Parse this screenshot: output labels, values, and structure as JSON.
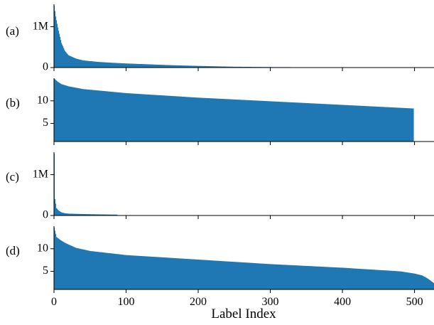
{
  "chart_data": [
    {
      "type": "bar",
      "panel_label": "(a)",
      "ytick_labels": [
        "1M",
        "0"
      ],
      "yticks": [
        1000000,
        0
      ],
      "ylim": [
        0,
        1550000
      ],
      "num_bars": 383,
      "profile_points": [
        [
          0,
          1520000
        ],
        [
          2,
          1250000
        ],
        [
          5,
          980000
        ],
        [
          10,
          600000
        ],
        [
          15,
          400000
        ],
        [
          20,
          300000
        ],
        [
          30,
          220000
        ],
        [
          40,
          175000
        ],
        [
          60,
          140000
        ],
        [
          80,
          118000
        ],
        [
          100,
          100000
        ],
        [
          130,
          80000
        ],
        [
          160,
          60000
        ],
        [
          200,
          40000
        ],
        [
          250,
          20000
        ],
        [
          300,
          12000
        ],
        [
          350,
          8000
        ],
        [
          383,
          6000
        ]
      ],
      "color": "#1f77b4"
    },
    {
      "type": "bar",
      "panel_label": "(b)",
      "ytick_labels": [
        "10",
        "5"
      ],
      "yticks": [
        10,
        5
      ],
      "ylim": [
        1,
        15
      ],
      "num_bars": 499,
      "profile_points": [
        [
          0,
          14.9
        ],
        [
          5,
          14.2
        ],
        [
          10,
          13.7
        ],
        [
          20,
          13.2
        ],
        [
          40,
          12.6
        ],
        [
          100,
          11.7
        ],
        [
          200,
          10.7
        ],
        [
          300,
          9.9
        ],
        [
          400,
          9.1
        ],
        [
          450,
          8.7
        ],
        [
          499,
          8.3
        ]
      ],
      "color": "#1f77b4"
    },
    {
      "type": "bar",
      "panel_label": "(c)",
      "ytick_labels": [
        "1M",
        "0"
      ],
      "yticks": [
        1000000,
        0
      ],
      "ylim": [
        0,
        1550000
      ],
      "num_bars": 88,
      "profile_points": [
        [
          0,
          1520000
        ],
        [
          1,
          400000
        ],
        [
          3,
          180000
        ],
        [
          6,
          120000
        ],
        [
          10,
          75000
        ],
        [
          15,
          55000
        ],
        [
          20,
          45000
        ],
        [
          40,
          35000
        ],
        [
          60,
          28000
        ],
        [
          88,
          20000
        ]
      ],
      "color": "#1f77b4"
    },
    {
      "type": "bar",
      "panel_label": "(d)",
      "ytick_labels": [
        "10",
        "5"
      ],
      "yticks": [
        10,
        5
      ],
      "ylim": [
        1,
        15
      ],
      "num_bars": 527,
      "profile_points": [
        [
          0,
          14.7
        ],
        [
          3,
          12.6
        ],
        [
          8,
          12.0
        ],
        [
          15,
          11.3
        ],
        [
          30,
          10.2
        ],
        [
          50,
          9.5
        ],
        [
          100,
          8.6
        ],
        [
          150,
          8.1
        ],
        [
          200,
          7.6
        ],
        [
          250,
          7.1
        ],
        [
          300,
          6.6
        ],
        [
          350,
          6.2
        ],
        [
          400,
          5.8
        ],
        [
          450,
          5.3
        ],
        [
          480,
          5.0
        ],
        [
          500,
          4.5
        ],
        [
          510,
          4.1
        ],
        [
          518,
          3.4
        ],
        [
          524,
          2.7
        ],
        [
          527,
          2.3
        ]
      ],
      "color": "#1f77b4"
    }
  ],
  "x_axis": {
    "label": "Label Index",
    "xlim": [
      0,
      527
    ],
    "tick_values": [
      0,
      100,
      200,
      300,
      400,
      500
    ],
    "tick_labels": [
      "0",
      "100",
      "200",
      "300",
      "400",
      "500"
    ]
  }
}
